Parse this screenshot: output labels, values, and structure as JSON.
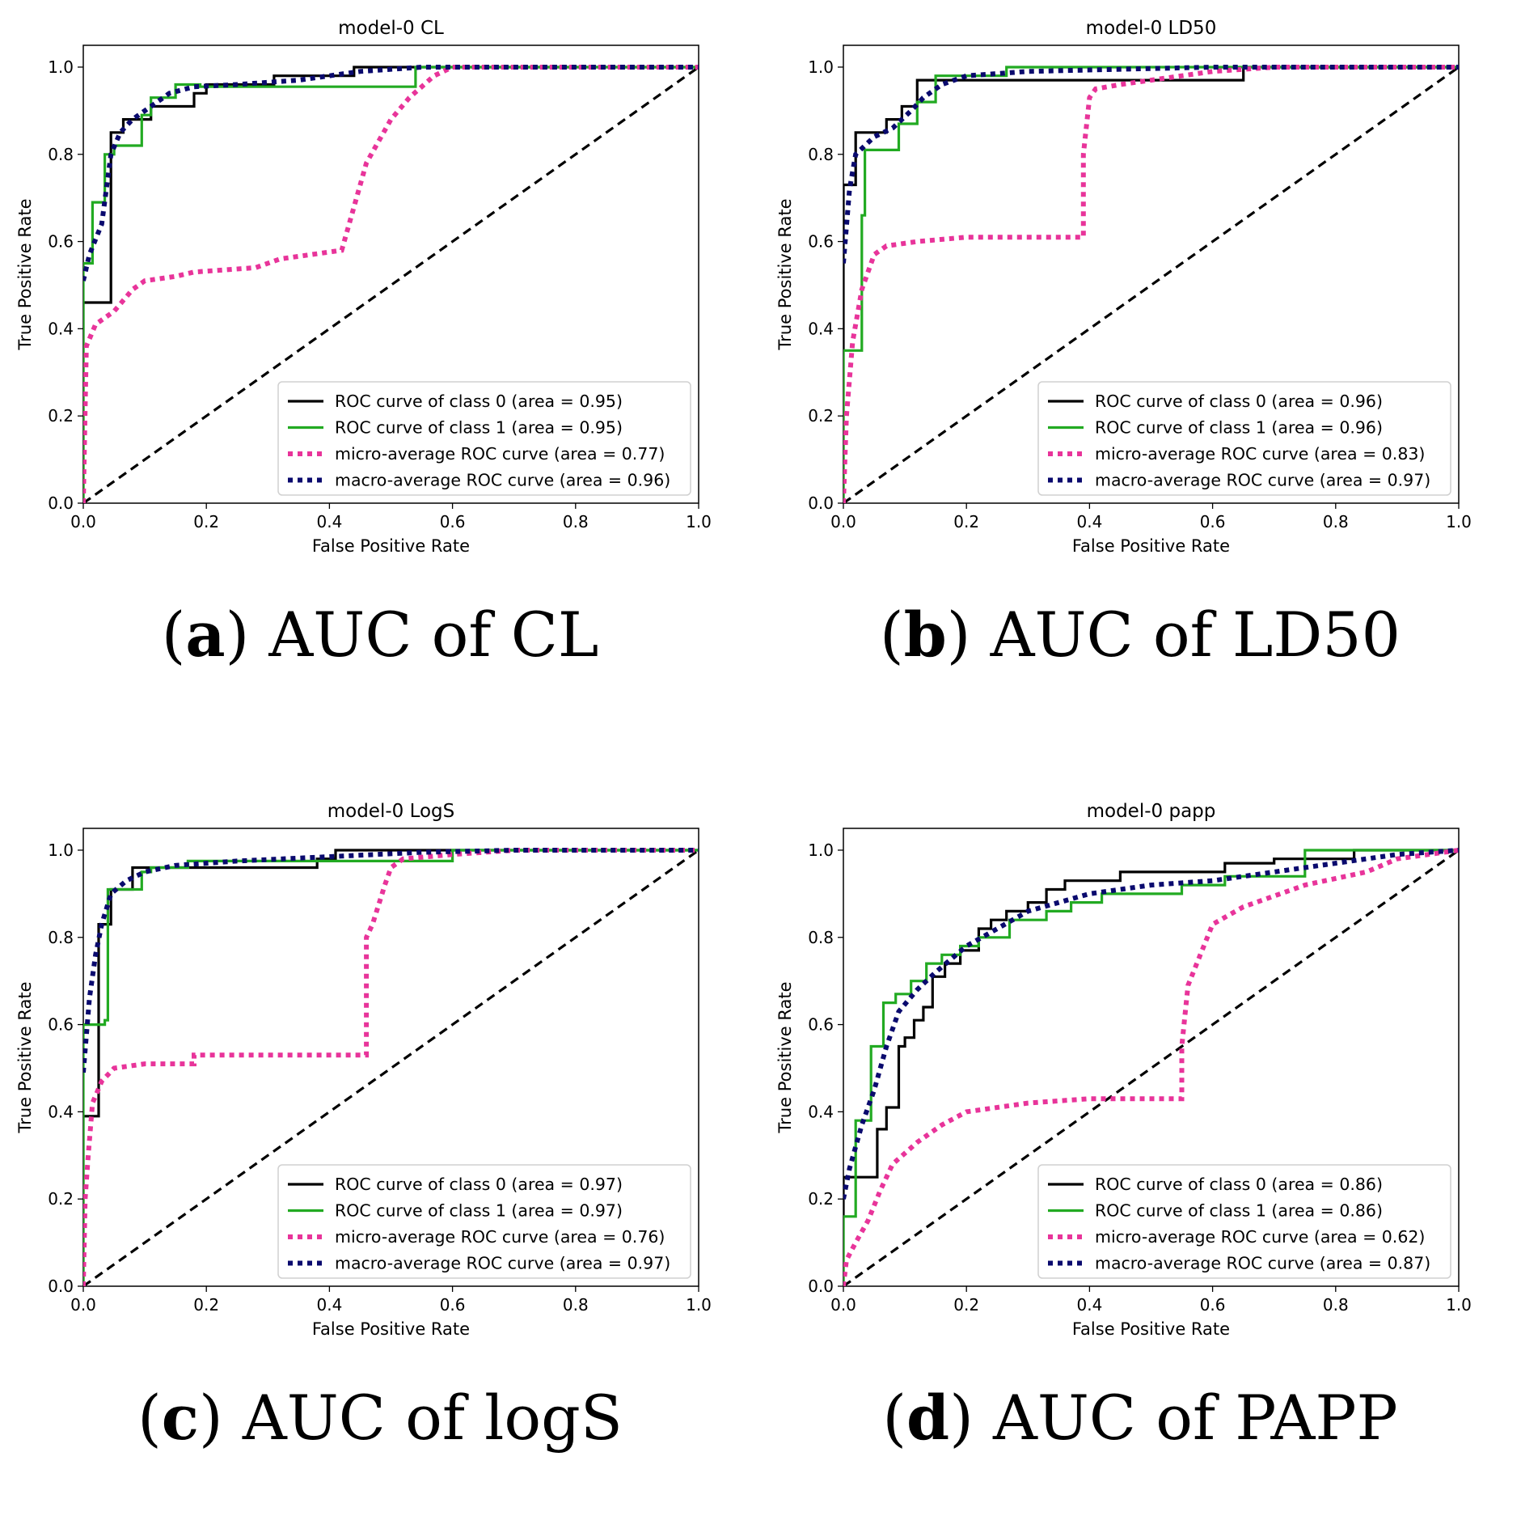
{
  "figure": {
    "panels": [
      {
        "label": "a",
        "caption": "AUC of CL"
      },
      {
        "label": "b",
        "caption": "AUC of LD50"
      },
      {
        "label": "c",
        "caption": "AUC of logS"
      },
      {
        "label": "d",
        "caption": "AUC of PAPP"
      }
    ]
  },
  "chart_data": [
    {
      "type": "line",
      "title": "model-0 CL",
      "xlabel": "False Positive Rate",
      "ylabel": "True Positive Rate",
      "xlim": [
        0.0,
        1.0
      ],
      "ylim": [
        0.0,
        1.05
      ],
      "xticks": [
        "0.0",
        "0.2",
        "0.4",
        "0.6",
        "0.8",
        "1.0"
      ],
      "yticks": [
        "0.0",
        "0.2",
        "0.4",
        "0.6",
        "0.8",
        "1.0"
      ],
      "legend_position": "lower-right",
      "series": [
        {
          "name": "ROC curve of class 0 (area = 0.95)",
          "color": "#000000",
          "style": "solid",
          "x": [
            0,
            0,
            0.045,
            0.045,
            0.065,
            0.065,
            0.11,
            0.11,
            0.18,
            0.18,
            0.2,
            0.2,
            0.31,
            0.31,
            0.44,
            0.44,
            1.0
          ],
          "y": [
            0,
            0.46,
            0.46,
            0.85,
            0.85,
            0.88,
            0.88,
            0.91,
            0.91,
            0.94,
            0.94,
            0.96,
            0.96,
            0.98,
            0.98,
            1.0,
            1.0
          ]
        },
        {
          "name": "ROC curve of class 1 (area = 0.95)",
          "color": "#22aa22",
          "style": "solid",
          "x": [
            0,
            0,
            0.015,
            0.015,
            0.035,
            0.035,
            0.05,
            0.05,
            0.095,
            0.095,
            0.11,
            0.11,
            0.15,
            0.15,
            0.19,
            0.19,
            0.54,
            0.54,
            1.0
          ],
          "y": [
            0,
            0.55,
            0.55,
            0.69,
            0.69,
            0.8,
            0.8,
            0.82,
            0.82,
            0.89,
            0.89,
            0.93,
            0.93,
            0.96,
            0.96,
            0.955,
            0.955,
            1.0,
            1.0
          ]
        },
        {
          "name": "micro-average ROC curve (area = 0.77)",
          "color": "#e8349a",
          "style": "dotted",
          "x": [
            0,
            0.005,
            0.02,
            0.05,
            0.08,
            0.1,
            0.15,
            0.18,
            0.28,
            0.32,
            0.42,
            0.46,
            0.5,
            0.53,
            0.57,
            0.6,
            0.7,
            1.0
          ],
          "y": [
            0,
            0.36,
            0.41,
            0.44,
            0.49,
            0.51,
            0.52,
            0.53,
            0.54,
            0.56,
            0.58,
            0.78,
            0.88,
            0.93,
            0.98,
            1.0,
            1.0,
            1.0
          ]
        },
        {
          "name": "macro-average ROC curve (area = 0.96)",
          "color": "#0a0a6e",
          "style": "dotted",
          "x": [
            0,
            0.01,
            0.03,
            0.045,
            0.06,
            0.08,
            0.11,
            0.14,
            0.18,
            0.25,
            0.35,
            0.45,
            0.55,
            0.7,
            1.0
          ],
          "y": [
            0.51,
            0.57,
            0.64,
            0.8,
            0.85,
            0.88,
            0.91,
            0.94,
            0.955,
            0.96,
            0.97,
            0.99,
            1.0,
            1.0,
            1.0
          ]
        },
        {
          "name": "",
          "color": "#000000",
          "style": "dashed",
          "x": [
            0,
            1
          ],
          "y": [
            0,
            1
          ]
        }
      ]
    },
    {
      "type": "line",
      "title": "model-0 LD50",
      "xlabel": "False Positive Rate",
      "ylabel": "True Positive Rate",
      "xlim": [
        0.0,
        1.0
      ],
      "ylim": [
        0.0,
        1.05
      ],
      "xticks": [
        "0.0",
        "0.2",
        "0.4",
        "0.6",
        "0.8",
        "1.0"
      ],
      "yticks": [
        "0.0",
        "0.2",
        "0.4",
        "0.6",
        "0.8",
        "1.0"
      ],
      "legend_position": "lower-right",
      "series": [
        {
          "name": "ROC curve of class 0 (area = 0.96)",
          "color": "#000000",
          "style": "solid",
          "x": [
            0,
            0,
            0.02,
            0.02,
            0.07,
            0.07,
            0.095,
            0.095,
            0.12,
            0.12,
            0.2,
            0.2,
            0.65,
            0.65,
            1.0
          ],
          "y": [
            0,
            0.73,
            0.73,
            0.85,
            0.85,
            0.88,
            0.88,
            0.91,
            0.91,
            0.97,
            0.97,
            0.97,
            0.97,
            1.0,
            1.0
          ]
        },
        {
          "name": "ROC curve of class 1 (area = 0.96)",
          "color": "#22aa22",
          "style": "solid",
          "x": [
            0,
            0,
            0.03,
            0.03,
            0.035,
            0.035,
            0.09,
            0.09,
            0.12,
            0.12,
            0.15,
            0.15,
            0.265,
            0.265,
            1.0
          ],
          "y": [
            0,
            0.35,
            0.35,
            0.66,
            0.66,
            0.81,
            0.81,
            0.87,
            0.87,
            0.92,
            0.92,
            0.98,
            0.98,
            1.0,
            1.0
          ]
        },
        {
          "name": "micro-average ROC curve (area = 0.83)",
          "color": "#e8349a",
          "style": "dotted",
          "x": [
            0,
            0.005,
            0.015,
            0.03,
            0.05,
            0.07,
            0.12,
            0.2,
            0.3,
            0.39,
            0.39,
            0.4,
            0.41,
            0.45,
            0.5,
            0.6,
            0.7,
            1.0
          ],
          "y": [
            0,
            0.2,
            0.37,
            0.49,
            0.57,
            0.59,
            0.6,
            0.61,
            0.61,
            0.61,
            0.8,
            0.93,
            0.95,
            0.96,
            0.97,
            0.99,
            1.0,
            1.0
          ]
        },
        {
          "name": "macro-average ROC curve (area = 0.97)",
          "color": "#0a0a6e",
          "style": "dotted",
          "x": [
            0,
            0.01,
            0.02,
            0.05,
            0.08,
            0.11,
            0.13,
            0.16,
            0.2,
            0.3,
            0.45,
            0.6,
            1.0
          ],
          "y": [
            0.55,
            0.72,
            0.8,
            0.84,
            0.86,
            0.9,
            0.93,
            0.96,
            0.98,
            0.99,
            0.995,
            1.0,
            1.0
          ]
        },
        {
          "name": "",
          "color": "#000000",
          "style": "dashed",
          "x": [
            0,
            1
          ],
          "y": [
            0,
            1
          ]
        }
      ]
    },
    {
      "type": "line",
      "title": "model-0 LogS",
      "xlabel": "False Positive Rate",
      "ylabel": "True Positive Rate",
      "xlim": [
        0.0,
        1.0
      ],
      "ylim": [
        0.0,
        1.05
      ],
      "xticks": [
        "0.0",
        "0.2",
        "0.4",
        "0.6",
        "0.8",
        "1.0"
      ],
      "yticks": [
        "0.0",
        "0.2",
        "0.4",
        "0.6",
        "0.8",
        "1.0"
      ],
      "legend_position": "lower-right",
      "series": [
        {
          "name": "ROC curve of class 0 (area = 0.97)",
          "color": "#000000",
          "style": "solid",
          "x": [
            0,
            0,
            0.025,
            0.025,
            0.035,
            0.035,
            0.045,
            0.045,
            0.08,
            0.08,
            0.38,
            0.38,
            0.41,
            0.41,
            1.0
          ],
          "y": [
            0,
            0.39,
            0.39,
            0.83,
            0.83,
            0.83,
            0.83,
            0.91,
            0.91,
            0.96,
            0.96,
            0.98,
            0.98,
            1.0,
            1.0
          ]
        },
        {
          "name": "ROC curve of class 1 (area = 0.97)",
          "color": "#22aa22",
          "style": "solid",
          "x": [
            0,
            0,
            0.035,
            0.035,
            0.04,
            0.04,
            0.095,
            0.095,
            0.11,
            0.11,
            0.17,
            0.17,
            0.6,
            0.6,
            1.0
          ],
          "y": [
            0,
            0.6,
            0.6,
            0.61,
            0.61,
            0.91,
            0.91,
            0.95,
            0.95,
            0.96,
            0.96,
            0.975,
            0.975,
            1.0,
            1.0
          ]
        },
        {
          "name": "micro-average ROC curve (area = 0.76)",
          "color": "#e8349a",
          "style": "dotted",
          "x": [
            0,
            0.003,
            0.008,
            0.015,
            0.03,
            0.05,
            0.1,
            0.18,
            0.18,
            0.3,
            0.46,
            0.46,
            0.47,
            0.49,
            0.5,
            0.52,
            0.6,
            0.7,
            1.0
          ],
          "y": [
            0,
            0.2,
            0.3,
            0.42,
            0.47,
            0.5,
            0.51,
            0.51,
            0.53,
            0.53,
            0.53,
            0.8,
            0.83,
            0.92,
            0.96,
            0.98,
            0.99,
            1.0,
            1.0
          ]
        },
        {
          "name": "macro-average ROC curve (area = 0.97)",
          "color": "#0a0a6e",
          "style": "dotted",
          "x": [
            0,
            0.01,
            0.02,
            0.03,
            0.045,
            0.07,
            0.1,
            0.15,
            0.25,
            0.4,
            0.55,
            0.7,
            1.0
          ],
          "y": [
            0.49,
            0.66,
            0.76,
            0.83,
            0.9,
            0.93,
            0.95,
            0.965,
            0.975,
            0.985,
            0.995,
            1.0,
            1.0
          ]
        },
        {
          "name": "",
          "color": "#000000",
          "style": "dashed",
          "x": [
            0,
            1
          ],
          "y": [
            0,
            1
          ]
        }
      ]
    },
    {
      "type": "line",
      "title": "model-0 papp",
      "xlabel": "False Positive Rate",
      "ylabel": "True Positive Rate",
      "xlim": [
        0.0,
        1.0
      ],
      "ylim": [
        0.0,
        1.05
      ],
      "xticks": [
        "0.0",
        "0.2",
        "0.4",
        "0.6",
        "0.8",
        "1.0"
      ],
      "yticks": [
        "0.0",
        "0.2",
        "0.4",
        "0.6",
        "0.8",
        "1.0"
      ],
      "legend_position": "lower-right",
      "series": [
        {
          "name": "ROC curve of class 0 (area = 0.86)",
          "color": "#000000",
          "style": "solid",
          "x": [
            0,
            0,
            0.055,
            0.055,
            0.07,
            0.07,
            0.09,
            0.09,
            0.1,
            0.1,
            0.115,
            0.115,
            0.13,
            0.13,
            0.145,
            0.145,
            0.165,
            0.165,
            0.19,
            0.19,
            0.22,
            0.22,
            0.24,
            0.24,
            0.265,
            0.265,
            0.3,
            0.3,
            0.33,
            0.33,
            0.36,
            0.36,
            0.4,
            0.4,
            0.45,
            0.45,
            0.55,
            0.55,
            0.62,
            0.62,
            0.7,
            0.7,
            0.83,
            0.83,
            1.0
          ],
          "y": [
            0,
            0.25,
            0.25,
            0.36,
            0.36,
            0.41,
            0.41,
            0.55,
            0.55,
            0.57,
            0.57,
            0.61,
            0.61,
            0.64,
            0.64,
            0.71,
            0.71,
            0.74,
            0.74,
            0.77,
            0.77,
            0.82,
            0.82,
            0.84,
            0.84,
            0.86,
            0.86,
            0.88,
            0.88,
            0.91,
            0.91,
            0.93,
            0.93,
            0.93,
            0.93,
            0.95,
            0.95,
            0.95,
            0.95,
            0.97,
            0.97,
            0.98,
            0.98,
            1.0,
            1.0
          ]
        },
        {
          "name": "ROC curve of class 1 (area = 0.86)",
          "color": "#22aa22",
          "style": "solid",
          "x": [
            0,
            0,
            0.02,
            0.02,
            0.045,
            0.045,
            0.065,
            0.065,
            0.085,
            0.085,
            0.11,
            0.11,
            0.135,
            0.135,
            0.16,
            0.16,
            0.19,
            0.19,
            0.22,
            0.22,
            0.27,
            0.27,
            0.33,
            0.33,
            0.37,
            0.37,
            0.42,
            0.42,
            0.55,
            0.55,
            0.62,
            0.62,
            0.75,
            0.75,
            1.0
          ],
          "y": [
            0,
            0.16,
            0.16,
            0.38,
            0.38,
            0.55,
            0.55,
            0.65,
            0.65,
            0.67,
            0.67,
            0.7,
            0.7,
            0.74,
            0.74,
            0.76,
            0.76,
            0.78,
            0.78,
            0.8,
            0.8,
            0.84,
            0.84,
            0.86,
            0.86,
            0.88,
            0.88,
            0.9,
            0.9,
            0.92,
            0.92,
            0.94,
            0.94,
            1.0,
            1.0
          ]
        },
        {
          "name": "micro-average ROC curve (area = 0.62)",
          "color": "#e8349a",
          "style": "dotted",
          "x": [
            0,
            0.005,
            0.02,
            0.04,
            0.06,
            0.08,
            0.12,
            0.16,
            0.2,
            0.3,
            0.4,
            0.55,
            0.55,
            0.56,
            0.58,
            0.6,
            0.65,
            0.75,
            0.85,
            0.9,
            1.0
          ],
          "y": [
            0,
            0.06,
            0.1,
            0.15,
            0.22,
            0.28,
            0.33,
            0.37,
            0.4,
            0.42,
            0.43,
            0.43,
            0.55,
            0.69,
            0.76,
            0.83,
            0.87,
            0.92,
            0.95,
            0.98,
            1.0
          ]
        },
        {
          "name": "macro-average ROC curve (area = 0.87)",
          "color": "#0a0a6e",
          "style": "dotted",
          "x": [
            0,
            0.01,
            0.03,
            0.05,
            0.07,
            0.09,
            0.12,
            0.15,
            0.2,
            0.25,
            0.3,
            0.4,
            0.5,
            0.6,
            0.7,
            0.8,
            0.9,
            1.0
          ],
          "y": [
            0.2,
            0.27,
            0.37,
            0.45,
            0.55,
            0.63,
            0.68,
            0.72,
            0.78,
            0.82,
            0.86,
            0.9,
            0.92,
            0.93,
            0.95,
            0.97,
            0.99,
            1.0
          ]
        },
        {
          "name": "",
          "color": "#000000",
          "style": "dashed",
          "x": [
            0,
            1
          ],
          "y": [
            0,
            1
          ]
        }
      ]
    }
  ]
}
